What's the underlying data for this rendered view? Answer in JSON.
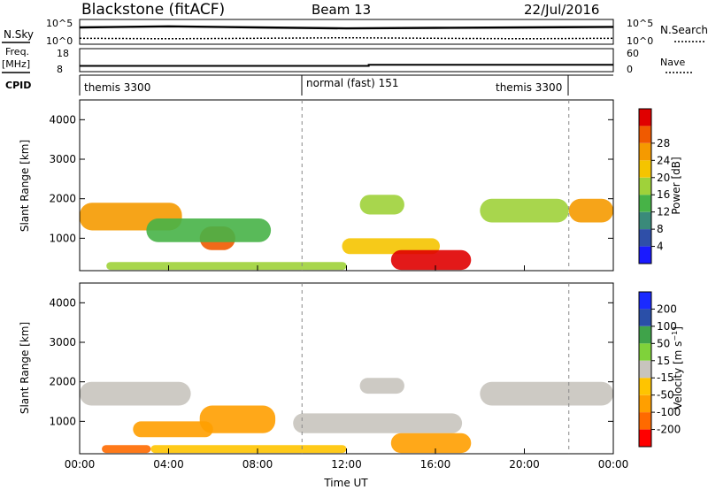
{
  "header": {
    "station": "Blackstone (fitACF)",
    "beam": "Beam 13",
    "date": "22/Jul/2016"
  },
  "left_labels": {
    "nsky": "N.Sky",
    "freq": "Freq.",
    "freq_unit": "[MHz]",
    "cpid": "CPID"
  },
  "right_labels": {
    "nsearch": "N.Search",
    "nave": "Nave"
  },
  "axes_text": {
    "noise_left_ticks": [
      "10^5",
      "10^0"
    ],
    "noise_right_ticks": [
      "10^5",
      "10^0"
    ],
    "freq_left_ticks": [
      "18",
      "8"
    ],
    "freq_right_ticks": [
      "60",
      "0"
    ]
  },
  "cpid_segments": [
    "themis 3300",
    "normal (fast) 151",
    "themis 3300"
  ],
  "colors": {
    "power": [
      "#1a1aff",
      "#2f4fa8",
      "#3a8a7a",
      "#47b347",
      "#9fd23a",
      "#f5c400",
      "#f59a00",
      "#f05a00",
      "#e00000"
    ],
    "velocity": [
      "#ff0000",
      "#ff6a00",
      "#ff9f00",
      "#ffc400",
      "#c8c4be",
      "#7fd23a",
      "#3fa34a",
      "#2a4fa8",
      "#1a2aff"
    ],
    "ground_scatter": "#c8c4be"
  },
  "chart_data": [
    {
      "type": "line",
      "title": "N.Sky / N.Search",
      "x": [
        "00:00",
        "04:00",
        "08:00",
        "12:00",
        "16:00",
        "20:00",
        "00:00"
      ],
      "series": [
        {
          "name": "N.Sky",
          "values": [
            3.4,
            3.6,
            3.4,
            3.2,
            3.3,
            3.4,
            3.5
          ]
        },
        {
          "name": "N.Search",
          "values": [
            1.2,
            1.1,
            1.2,
            1.3,
            1.2,
            1.1,
            1.2
          ]
        }
      ],
      "ylim": [
        0,
        5
      ]
    },
    {
      "type": "line",
      "title": "Freq. / Nave",
      "x": [
        "00:00",
        "13:00",
        "13:00",
        "00:00"
      ],
      "series": [
        {
          "name": "Freq.",
          "values": [
            10.5,
            10.5,
            11.0,
            11.0
          ]
        }
      ],
      "ylim": [
        8,
        18
      ]
    },
    {
      "type": "heatmap",
      "xlabel": "",
      "ylabel": "Slant Range [km]",
      "colorbar_label": "Power [dB]",
      "colorbar_ticks": [
        "4",
        "8",
        "12",
        "16",
        "20",
        "24",
        "28"
      ],
      "x_ticks": [
        "00:00",
        "04:00",
        "08:00",
        "12:00",
        "16:00",
        "20:00",
        "00:00"
      ],
      "y_ticks": [
        "1000",
        "2000",
        "3000",
        "4000"
      ],
      "ylim": [
        180,
        4500
      ],
      "blobs": [
        {
          "t0": 0.0,
          "t1": 4.6,
          "r0": 1200,
          "r1": 1900,
          "level": 6
        },
        {
          "t0": 5.4,
          "t1": 7.0,
          "r0": 700,
          "r1": 1300,
          "level": 7
        },
        {
          "t0": 3.0,
          "t1": 8.6,
          "r0": 900,
          "r1": 1500,
          "level": 3
        },
        {
          "t0": 11.8,
          "t1": 16.2,
          "r0": 600,
          "r1": 1000,
          "level": 5
        },
        {
          "t0": 14.0,
          "t1": 17.6,
          "r0": 200,
          "r1": 700,
          "level": 8
        },
        {
          "t0": 12.6,
          "t1": 14.6,
          "r0": 1600,
          "r1": 2100,
          "level": 4
        },
        {
          "t0": 18.0,
          "t1": 22.0,
          "r0": 1400,
          "r1": 2000,
          "level": 4
        },
        {
          "t0": 22.0,
          "t1": 24.0,
          "r0": 1400,
          "r1": 2000,
          "level": 6
        },
        {
          "t0": 1.2,
          "t1": 12.0,
          "r0": 200,
          "r1": 400,
          "level": 4
        }
      ]
    },
    {
      "type": "heatmap",
      "xlabel": "Time UT",
      "ylabel": "Slant Range [km]",
      "colorbar_label": "Velocity [m s^-1]",
      "colorbar_ticks": [
        "-200",
        "-100",
        "-50",
        "-15",
        "15",
        "50",
        "100",
        "200"
      ],
      "x_ticks": [
        "00:00",
        "04:00",
        "08:00",
        "12:00",
        "16:00",
        "20:00",
        "00:00"
      ],
      "y_ticks": [
        "1000",
        "2000",
        "3000",
        "4000"
      ],
      "ylim": [
        180,
        4500
      ],
      "blobs": [
        {
          "t0": 0.0,
          "t1": 5.0,
          "r0": 1400,
          "r1": 2000,
          "level": 4
        },
        {
          "t0": 5.4,
          "t1": 8.8,
          "r0": 700,
          "r1": 1400,
          "level": 2
        },
        {
          "t0": 2.4,
          "t1": 6.0,
          "r0": 600,
          "r1": 1000,
          "level": 2
        },
        {
          "t0": 9.6,
          "t1": 17.2,
          "r0": 700,
          "r1": 1200,
          "level": 4
        },
        {
          "t0": 12.6,
          "t1": 14.6,
          "r0": 1700,
          "r1": 2100,
          "level": 4
        },
        {
          "t0": 14.0,
          "t1": 17.6,
          "r0": 200,
          "r1": 700,
          "level": 2
        },
        {
          "t0": 18.0,
          "t1": 24.0,
          "r0": 1400,
          "r1": 2000,
          "level": 4
        },
        {
          "t0": 1.0,
          "t1": 3.2,
          "r0": 200,
          "r1": 400,
          "level": 1
        },
        {
          "t0": 3.2,
          "t1": 12.0,
          "r0": 200,
          "r1": 400,
          "level": 3
        }
      ]
    }
  ]
}
